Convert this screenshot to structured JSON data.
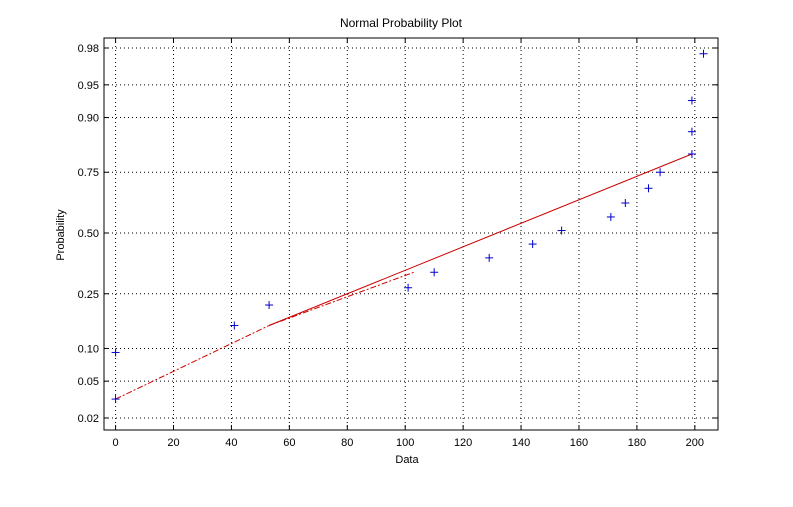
{
  "chart_data": {
    "type": "scatter",
    "title": "Normal Probability Plot",
    "xlabel": "Data",
    "ylabel": "Probability",
    "xlim": [
      -4,
      208
    ],
    "x_ticks": [
      0,
      20,
      40,
      60,
      80,
      100,
      120,
      140,
      160,
      180,
      200
    ],
    "y_ticks": [
      0.02,
      0.05,
      0.1,
      0.25,
      0.5,
      0.75,
      0.9,
      0.95,
      0.98
    ],
    "y_tick_labels": [
      "0.02",
      "0.05",
      "0.10",
      "0.25",
      "0.50",
      "0.75",
      "0.90",
      "0.95",
      "0.98"
    ],
    "y_scale": "normal-probability",
    "grid": true,
    "series": [
      {
        "marker": "plus",
        "color": "#0000cc",
        "points": [
          {
            "x": 0,
            "y": 0.0326
          },
          {
            "x": 0,
            "y": 0.0924
          },
          {
            "x": 41,
            "y": 0.1522
          },
          {
            "x": 53,
            "y": 0.212
          },
          {
            "x": 101,
            "y": 0.2717
          },
          {
            "x": 110,
            "y": 0.3315
          },
          {
            "x": 129,
            "y": 0.3913
          },
          {
            "x": 144,
            "y": 0.4511
          },
          {
            "x": 154,
            "y": 0.5109
          },
          {
            "x": 171,
            "y": 0.5707
          },
          {
            "x": 176,
            "y": 0.6304
          },
          {
            "x": 184,
            "y": 0.6902
          },
          {
            "x": 188,
            "y": 0.75
          },
          {
            "x": 199,
            "y": 0.8098
          },
          {
            "x": 199,
            "y": 0.8696
          },
          {
            "x": 199,
            "y": 0.9293
          },
          {
            "x": 203,
            "y": 0.9767
          }
        ]
      }
    ],
    "reference_line": {
      "color": "#cc0000",
      "solid": {
        "from": {
          "x": 53,
          "y": 0.1522
        },
        "to": {
          "x": 199,
          "y": 0.8098
        }
      },
      "extended": [
        {
          "from": {
            "x": 0,
            "y": 0.0326
          },
          "to": {
            "x": 53,
            "y": 0.1522
          }
        },
        {
          "from": {
            "x": 53,
            "y": 0.1522
          },
          "to": {
            "x": 103,
            "y": 0.3315
          }
        }
      ]
    }
  }
}
